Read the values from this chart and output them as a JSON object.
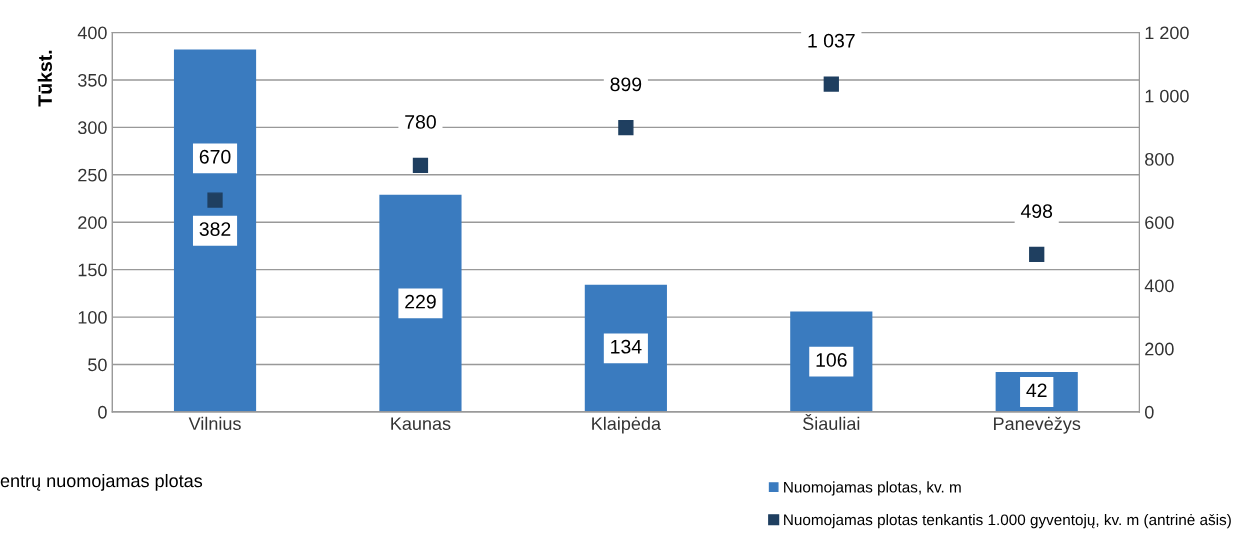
{
  "chart_data": {
    "type": "bar",
    "ylabel": "Tūkst.",
    "categories": [
      "Vilnius",
      "Kaunas",
      "Klaipėda",
      "Šiauliai",
      "Panevėžys"
    ],
    "series": [
      {
        "name": "Nuomojamas plotas, kv. m",
        "color": "#3a7bbf",
        "values": [
          382,
          229,
          134,
          106,
          42
        ]
      },
      {
        "name": "Nuomojamas plotas tenkantis 1.000 gyventojų, kv. m (antrinė ašis)",
        "type": "scatter",
        "axis": "y2",
        "color": "#1f3f60",
        "values": [
          670,
          780,
          899,
          1037,
          498
        ]
      }
    ],
    "data_labels": true,
    "marker": "square",
    "grid": "y",
    "legend": "bottom right",
    "ylim": [
      0,
      400
    ],
    "yticks": [
      0,
      50,
      100,
      150,
      200,
      250,
      300,
      350,
      400
    ],
    "y2lim": [
      0,
      1200
    ],
    "y2ticks": [
      0,
      200,
      400,
      600,
      800,
      {
        "value": 1000,
        "label": "1 000"
      },
      {
        "value": 1200,
        "label": "1 200"
      }
    ],
    "annotations": [
      "entrų nuomojamas plotas"
    ]
  }
}
